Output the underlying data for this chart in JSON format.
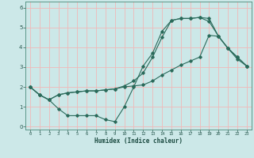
{
  "xlabel": "Humidex (Indice chaleur)",
  "bg_color": "#cce8e8",
  "grid_color": "#f0b8b8",
  "line_color": "#2a6a5a",
  "xlim": [
    -0.5,
    23.5
  ],
  "ylim": [
    -0.15,
    6.3
  ],
  "xticks": [
    0,
    1,
    2,
    3,
    4,
    5,
    6,
    7,
    8,
    9,
    10,
    11,
    12,
    13,
    14,
    15,
    16,
    17,
    18,
    19,
    20,
    21,
    22,
    23
  ],
  "yticks": [
    0,
    1,
    2,
    3,
    4,
    5,
    6
  ],
  "line1_x": [
    0,
    1,
    2,
    3,
    4,
    5,
    6,
    7,
    8,
    9,
    10,
    11,
    12,
    13,
    14,
    15,
    16,
    17,
    18,
    19,
    20,
    21,
    22,
    23
  ],
  "line1_y": [
    2.0,
    1.6,
    1.35,
    0.9,
    0.55,
    0.55,
    0.55,
    0.55,
    0.35,
    0.25,
    1.0,
    2.0,
    3.05,
    3.7,
    4.8,
    5.35,
    5.45,
    5.45,
    5.5,
    5.45,
    4.55,
    3.95,
    3.5,
    3.05
  ],
  "line2_x": [
    0,
    1,
    2,
    3,
    4,
    5,
    6,
    7,
    8,
    9,
    10,
    11,
    12,
    13,
    14,
    15,
    16,
    17,
    18,
    19,
    20,
    21,
    22,
    23
  ],
  "line2_y": [
    2.0,
    1.6,
    1.35,
    1.6,
    1.7,
    1.75,
    1.8,
    1.8,
    1.85,
    1.9,
    2.0,
    2.05,
    2.1,
    2.3,
    2.6,
    2.85,
    3.1,
    3.3,
    3.5,
    4.6,
    4.55,
    3.95,
    3.4,
    3.05
  ],
  "line3_x": [
    0,
    1,
    2,
    3,
    4,
    5,
    6,
    7,
    8,
    9,
    10,
    11,
    12,
    13,
    14,
    15,
    16,
    17,
    18,
    19,
    20,
    21,
    22,
    23
  ],
  "line3_y": [
    2.0,
    1.6,
    1.35,
    1.6,
    1.7,
    1.75,
    1.8,
    1.8,
    1.85,
    1.9,
    2.05,
    2.3,
    2.7,
    3.5,
    4.5,
    5.35,
    5.45,
    5.45,
    5.5,
    5.3,
    4.55,
    3.95,
    3.5,
    3.05
  ]
}
